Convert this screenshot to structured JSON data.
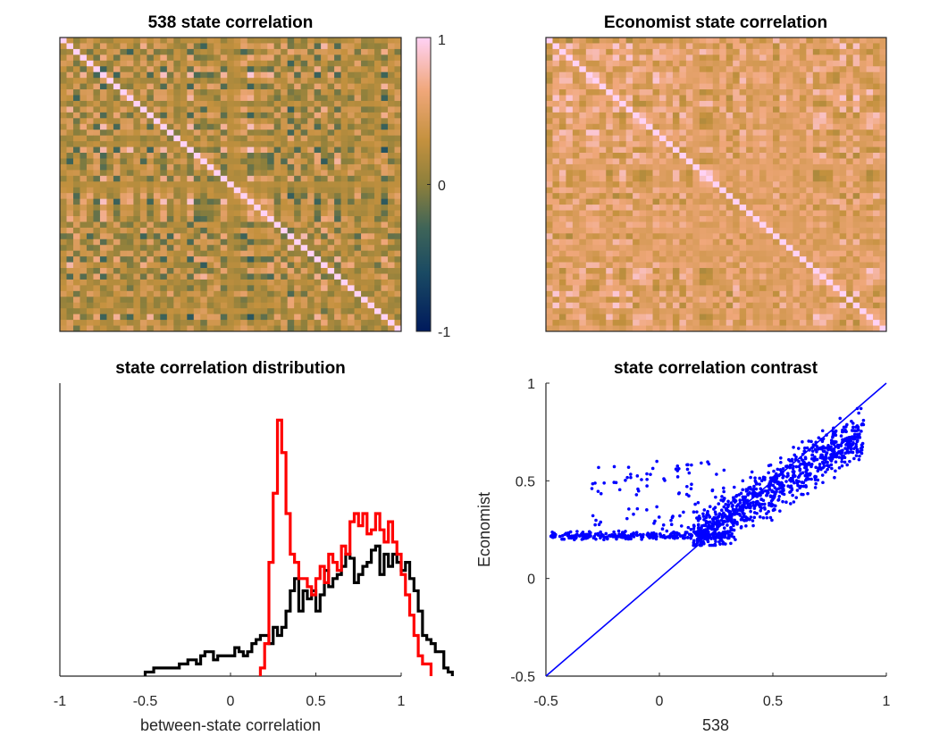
{
  "chart_data": [
    {
      "type": "heatmap",
      "title": "538 state correlation",
      "n_states": 51,
      "colorbar": {
        "min": -1,
        "max": 1,
        "ticks": [
          "1",
          "0",
          "-1"
        ]
      },
      "diagonal": 1,
      "typical_range": [
        -0.5,
        0.95
      ]
    },
    {
      "type": "heatmap",
      "title": "Economist state correlation",
      "n_states": 51,
      "diagonal": 1,
      "typical_range": [
        0.15,
        0.9
      ]
    },
    {
      "type": "line",
      "subtype": "stairs-histogram",
      "title": "state correlation distribution",
      "xlabel": "between-state correlation",
      "xlim": [
        -1,
        1
      ],
      "x_ticks": [
        "-1",
        "-0.5",
        "0",
        "0.5",
        "1"
      ],
      "bin_width": 0.025,
      "series": [
        {
          "color": "#000000",
          "bin_start": -0.5,
          "counts": [
            1,
            1,
            2,
            2,
            2,
            2,
            2,
            2,
            3,
            3,
            4,
            4,
            3,
            5,
            6,
            6,
            4,
            5,
            5,
            5,
            5,
            7,
            6,
            5,
            6,
            8,
            9,
            10,
            10,
            8,
            12,
            10,
            12,
            16,
            21,
            24,
            16,
            21,
            19,
            21,
            16,
            20,
            26,
            22,
            24,
            25,
            27,
            30,
            29,
            23,
            25,
            27,
            28,
            31,
            32,
            25,
            30,
            27,
            30,
            28,
            26,
            28,
            24,
            21,
            16,
            10,
            9,
            8,
            6,
            6,
            2,
            1
          ]
        },
        {
          "color": "#ff0000",
          "bin_start": 0.175,
          "counts": [
            2,
            8,
            28,
            45,
            63,
            55,
            40,
            30,
            28,
            24,
            24,
            22,
            20,
            24,
            27,
            23,
            30,
            28,
            26,
            32,
            30,
            38,
            40,
            37,
            40,
            35,
            36,
            40,
            36,
            33,
            38,
            33,
            30,
            25,
            20,
            15,
            10,
            5,
            3,
            3
          ]
        }
      ]
    },
    {
      "type": "scatter",
      "title": "state correlation contrast",
      "xlabel": "538",
      "ylabel": "Economist",
      "xlim": [
        -0.5,
        1
      ],
      "ylim": [
        -0.5,
        1
      ],
      "x_ticks": [
        "-0.5",
        "0",
        "0.5",
        "1"
      ],
      "y_ticks": [
        "-0.5",
        "0",
        "0.5",
        "1"
      ],
      "color": "#0000ff",
      "reference_line": "y = x",
      "n_points": 1275
    }
  ]
}
